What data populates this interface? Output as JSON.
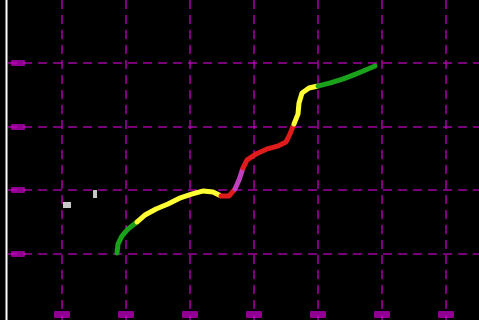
{
  "map": {
    "background_color": "#000000",
    "grid_color": "#c000c0",
    "frame_color": "#ffffff",
    "latitude_labels": [
      "",
      "",
      "",
      ""
    ],
    "longitude_labels": [
      "",
      "",
      "",
      "",
      "",
      "",
      ""
    ],
    "legend": {
      "stage_colors": {
        "green": "#1aa31a",
        "yellow": "#ffff33",
        "red": "#e01b1b",
        "magenta": "#c040c0"
      }
    }
  },
  "track": {
    "description_free": true,
    "segments": [
      {
        "stage": "green",
        "color": "#1aa31a"
      },
      {
        "stage": "yellow",
        "color": "#ffff33"
      },
      {
        "stage": "red",
        "color": "#e01b1b"
      },
      {
        "stage": "magenta",
        "color": "#c040c0"
      },
      {
        "stage": "red",
        "color": "#e01b1b"
      },
      {
        "stage": "yellow",
        "color": "#ffff33"
      },
      {
        "stage": "green",
        "color": "#1aa31a"
      }
    ]
  },
  "markers": [
    {
      "name": "station-marker-1",
      "color": "#c8c8c8"
    },
    {
      "name": "station-marker-2",
      "color": "#c8c8c8"
    }
  ]
}
